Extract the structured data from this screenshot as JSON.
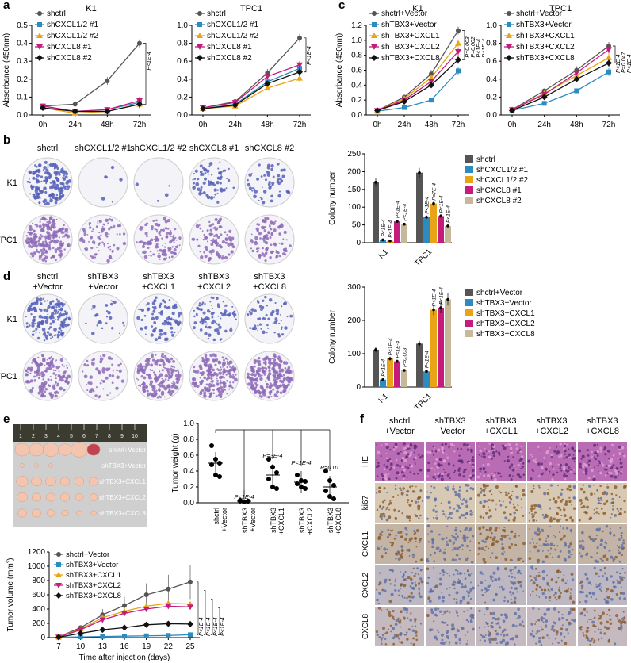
{
  "panel_letters": {
    "a": "a",
    "b": "b",
    "c": "c",
    "d": "d",
    "e": "e",
    "f": "f"
  },
  "colors": {
    "grey": "#555555",
    "blue": "#2E8BC0",
    "orange": "#E8A317",
    "magenta": "#C51B7D",
    "tan": "#C8B89A",
    "black": "#111111",
    "dish_blue": "#5560B8",
    "dish_purple": "#8E6BB8",
    "tumor": "#F3C5AE"
  },
  "panel_a": {
    "ylabel": "Absorbance (450nm)",
    "xticks": [
      "0h",
      "24h",
      "48h",
      "72h"
    ],
    "charts": [
      {
        "title": "K1",
        "yticks": [
          "0.0",
          "0.1",
          "0.2",
          "0.3",
          "0.4",
          "0.5"
        ],
        "ylim": [
          0,
          0.5
        ],
        "pval": "P<1E-4",
        "legend": [
          "shctrl",
          "shCXCL1/2 #1",
          "shCXCL1/2 #2",
          "shCXCL8  #1",
          "shCXCL8  #2"
        ]
      },
      {
        "title": "TPC1",
        "yticks": [
          "0.0",
          "0.2",
          "0.4",
          "0.6",
          "0.8",
          "1.0"
        ],
        "ylim": [
          0,
          1.0
        ],
        "pval": "P<1E-4",
        "legend": [
          "shctrl",
          "shCXCL1/2 #1",
          "shCXCL1/2 #2",
          "shCXCL8  #1",
          "shCXCL8  #2"
        ]
      }
    ]
  },
  "panel_c": {
    "ylabel": "Absorbance (450nm)",
    "xticks": [
      "0h",
      "24h",
      "48h",
      "72h"
    ],
    "charts": [
      {
        "title": "K1",
        "yticks": [
          "0.0",
          "0.2",
          "0.4",
          "0.6",
          "0.8",
          "1.0",
          "1.2"
        ],
        "ylim": [
          0,
          1.2
        ],
        "legend": [
          "shctrl+Vector",
          "shTBX3+Vector",
          "shTBX3+CXCL1",
          "shTBX3+CXCL2",
          "shTBX3+CXCL8"
        ],
        "pvals": [
          "P=0.003",
          "P=0.002",
          "P<1E-4",
          "P<1E-4"
        ]
      },
      {
        "title": "TPC1",
        "yticks": [
          "0.0",
          "0.2",
          "0.4",
          "0.6",
          "0.8",
          "1.0"
        ],
        "ylim": [
          0,
          1.0
        ],
        "legend": [
          "shctrl+Vector",
          "shTBX3+Vector",
          "shTBX3+CXCL1",
          "shTBX3+CXCL2",
          "shTBX3+CXCL8"
        ],
        "pvals": [
          "P<1E-4",
          "P=0.047",
          "P<1E-4",
          "P=8E-4"
        ]
      }
    ]
  },
  "panel_b": {
    "columns": [
      "shctrl",
      "shCXCL1/2 #1",
      "shCXCL1/2 #2",
      "shCXCL8 #1",
      "shCXCL8 #2"
    ],
    "rows": [
      "K1",
      "TPC1"
    ],
    "bar_ylabel": "Colony number",
    "bar_yticks": [
      "0",
      "50",
      "100",
      "150",
      "200",
      "250"
    ],
    "bar_groups": [
      "K1",
      "TPC1"
    ],
    "legend": [
      "shctrl",
      "shCXCL1/2 #1",
      "shCXCL1/2 #2",
      "shCXCL8 #1",
      "shCXCL8 #2"
    ],
    "pvals": [
      "P<1E-4",
      "P<1E-4",
      "P<1E-4",
      "P<1E-4",
      "P<1E-4",
      "P=7E-4",
      "P<1E-4",
      "P<1E-4"
    ]
  },
  "panel_d": {
    "columns": [
      [
        "shctrl",
        "+Vector"
      ],
      [
        "shTBX3",
        "+Vector"
      ],
      [
        "shTBX3",
        "+CXCL1"
      ],
      [
        "shTBX3",
        "+CXCL2"
      ],
      [
        "shTBX3",
        "+CXCL8"
      ]
    ],
    "rows": [
      "K1",
      "TPC1"
    ],
    "bar_ylabel": "Colony number",
    "bar_yticks": [
      "0",
      "100",
      "200",
      "300"
    ],
    "bar_groups": [
      "K1",
      "TPC1"
    ],
    "legend": [
      "shctrl+Vector",
      "shTBX3+Vector",
      "shTBX3+CXCL1",
      "shTBX3+CXCL2",
      "shTBX3+CXCL8"
    ],
    "pvals": [
      "P<1E-4",
      "P<1E-4",
      "P<1E-4",
      "P=0.003",
      "P<1E-4",
      "P<1E-4",
      "P<1E-4"
    ]
  },
  "panel_e": {
    "ruler_marks": [
      "1",
      "2",
      "3",
      "4",
      "5",
      "6",
      "7",
      "8",
      "9",
      "10"
    ],
    "tumor_labels": [
      "shctrl+Vector",
      "shTBX3+Vector",
      "shTBX3+CXCL1",
      "shTBX3+CXCL2",
      "shTBX3+CXCL8"
    ],
    "weight_ylabel": "Tumor weight (g)",
    "weight_yticks": [
      "0.0",
      "0.2",
      "0.4",
      "0.6",
      "0.8",
      "1.0"
    ],
    "weight_groups": [
      [
        "shctrl",
        "+Vector"
      ],
      [
        "shTBX3",
        "+Vector"
      ],
      [
        "shTBX3",
        "+CXCL1"
      ],
      [
        "shTBX3",
        "+CXCL2"
      ],
      [
        "shTBX3",
        "+CXCL8"
      ]
    ],
    "weight_pvals": [
      "P<1E-4",
      "P=3E-4",
      "P<1E-4",
      "P=0.01"
    ],
    "vol_ylabel": "Tumor volume (mm³)",
    "vol_xlabel": "Time after injection (days)",
    "vol_xticks": [
      "7",
      "10",
      "13",
      "16",
      "19",
      "22",
      "25"
    ],
    "vol_yticks": [
      "0",
      "200",
      "400",
      "600",
      "800",
      "1000",
      "1200"
    ],
    "vol_legend": [
      "shctrl+Vector",
      "shTBX3+Vector",
      "shTBX3+CXCL1",
      "shTBX3+CXCL2",
      "shTBX3+CXCL8"
    ],
    "vol_pvals": [
      "P<1E-4",
      "P<1E-4",
      "P<1E-4",
      "P<1E-4"
    ]
  },
  "panel_f": {
    "columns": [
      [
        "shctrl",
        "+Vector"
      ],
      [
        "shTBX3",
        "+Vector"
      ],
      [
        "shTBX3",
        "+CXCL1"
      ],
      [
        "shTBX3",
        "+CXCL2"
      ],
      [
        "shTBX3",
        "+CXCL8"
      ]
    ],
    "rows": [
      "HE",
      "ki67",
      "CXCL1",
      "CXCL2",
      "CXCL8"
    ]
  },
  "chart_data": [
    {
      "type": "line",
      "title": "K1",
      "xlabel": "",
      "ylabel": "Absorbance (450nm)",
      "categories": [
        "0h",
        "24h",
        "48h",
        "72h"
      ],
      "ylim": [
        0,
        0.5
      ],
      "series": [
        {
          "name": "shctrl",
          "values": [
            0.05,
            0.06,
            0.19,
            0.4
          ]
        },
        {
          "name": "shCXCL1/2 #1",
          "values": [
            0.05,
            0.02,
            0.03,
            0.07
          ]
        },
        {
          "name": "shCXCL1/2 #2",
          "values": [
            0.04,
            0.01,
            0.02,
            0.06
          ]
        },
        {
          "name": "shCXCL8  #1",
          "values": [
            0.05,
            0.02,
            0.03,
            0.08
          ]
        },
        {
          "name": "shCXCL8  #2",
          "values": [
            0.04,
            0.02,
            0.02,
            0.06
          ]
        }
      ]
    },
    {
      "type": "line",
      "title": "TPC1",
      "xlabel": "",
      "ylabel": "",
      "categories": [
        "0h",
        "24h",
        "48h",
        "72h"
      ],
      "ylim": [
        0,
        1.0
      ],
      "series": [
        {
          "name": "shctrl",
          "values": [
            0.08,
            0.15,
            0.47,
            0.86
          ]
        },
        {
          "name": "shCXCL1/2 #1",
          "values": [
            0.07,
            0.12,
            0.37,
            0.52
          ]
        },
        {
          "name": "shCXCL1/2 #2",
          "values": [
            0.07,
            0.1,
            0.3,
            0.41
          ]
        },
        {
          "name": "shCXCL8  #1",
          "values": [
            0.08,
            0.14,
            0.43,
            0.56
          ]
        },
        {
          "name": "shCXCL8  #2",
          "values": [
            0.07,
            0.11,
            0.35,
            0.48
          ]
        }
      ]
    },
    {
      "type": "line",
      "title": "K1",
      "xlabel": "",
      "ylabel": "Absorbance (450nm)",
      "categories": [
        "0h",
        "24h",
        "48h",
        "72h"
      ],
      "ylim": [
        0,
        1.2
      ],
      "series": [
        {
          "name": "shctrl+Vector",
          "values": [
            0.06,
            0.24,
            0.55,
            1.13
          ]
        },
        {
          "name": "shTBX3+Vector",
          "values": [
            0.05,
            0.1,
            0.2,
            0.59
          ]
        },
        {
          "name": "shTBX3+CXCL1",
          "values": [
            0.06,
            0.22,
            0.5,
            0.96
          ]
        },
        {
          "name": "shTBX3+CXCL2",
          "values": [
            0.06,
            0.2,
            0.45,
            0.85
          ]
        },
        {
          "name": "shTBX3+CXCL8",
          "values": [
            0.06,
            0.18,
            0.4,
            0.74
          ]
        }
      ]
    },
    {
      "type": "line",
      "title": "TPC1",
      "xlabel": "",
      "ylabel": "",
      "categories": [
        "0h",
        "24h",
        "48h",
        "72h"
      ],
      "ylim": [
        0,
        1.0
      ],
      "series": [
        {
          "name": "shctrl+Vector",
          "values": [
            0.06,
            0.27,
            0.5,
            0.77
          ]
        },
        {
          "name": "shTBX3+Vector",
          "values": [
            0.05,
            0.13,
            0.27,
            0.48
          ]
        },
        {
          "name": "shTBX3+CXCL1",
          "values": [
            0.06,
            0.24,
            0.44,
            0.64
          ]
        },
        {
          "name": "shTBX3+CXCL2",
          "values": [
            0.06,
            0.23,
            0.47,
            0.73
          ]
        },
        {
          "name": "shTBX3+CXCL8",
          "values": [
            0.05,
            0.2,
            0.4,
            0.58
          ]
        }
      ]
    },
    {
      "type": "bar",
      "title": "",
      "xlabel": "",
      "ylabel": "Colony number",
      "categories": [
        "K1",
        "TPC1"
      ],
      "ylim": [
        0,
        250
      ],
      "series": [
        {
          "name": "shctrl",
          "values": [
            170,
            197
          ]
        },
        {
          "name": "shCXCL1/2 #1",
          "values": [
            8,
            72
          ]
        },
        {
          "name": "shCXCL1/2 #2",
          "values": [
            5,
            110
          ]
        },
        {
          "name": "shCXCL8 #1",
          "values": [
            60,
            75
          ]
        },
        {
          "name": "shCXCL8 #2",
          "values": [
            52,
            47
          ]
        }
      ]
    },
    {
      "type": "bar",
      "title": "",
      "xlabel": "",
      "ylabel": "Colony number",
      "categories": [
        "K1",
        "TPC1"
      ],
      "ylim": [
        0,
        300
      ],
      "series": [
        {
          "name": "shctrl+Vector",
          "values": [
            112,
            130
          ]
        },
        {
          "name": "shTBX3+Vector",
          "values": [
            22,
            47
          ]
        },
        {
          "name": "shTBX3+CXCL1",
          "values": [
            85,
            232
          ]
        },
        {
          "name": "shTBX3+CXCL2",
          "values": [
            77,
            238
          ]
        },
        {
          "name": "shTBX3+CXCL8",
          "values": [
            50,
            263
          ]
        }
      ]
    },
    {
      "type": "scatter",
      "title": "",
      "xlabel": "",
      "ylabel": "Tumor weight (g)",
      "categories": [
        "shctrl +Vector",
        "shTBX3 +Vector",
        "shTBX3 +CXCL1",
        "shTBX3 +CXCL2",
        "shTBX3 +CXCL8"
      ],
      "ylim": [
        0,
        1.0
      ],
      "series": [
        {
          "name": "points",
          "values": [
            [
              0.72,
              0.55,
              0.5,
              0.48,
              0.35,
              0.33
            ],
            [
              0.02,
              0.01,
              0.02,
              0.03,
              0.01,
              0.02
            ],
            [
              0.55,
              0.45,
              0.38,
              0.3,
              0.2,
              0.18
            ],
            [
              0.35,
              0.28,
              0.27,
              0.24,
              0.2,
              0.18
            ],
            [
              0.4,
              0.28,
              0.22,
              0.15,
              0.08,
              0.05
            ]
          ]
        },
        {
          "name": "mean",
          "values": [
            0.5,
            0.02,
            0.35,
            0.26,
            0.2
          ]
        }
      ]
    },
    {
      "type": "line",
      "title": "",
      "xlabel": "Time after injection (days)",
      "ylabel": "Tumor volume (mm³)",
      "categories": [
        "7",
        "10",
        "13",
        "16",
        "19",
        "22",
        "25"
      ],
      "ylim": [
        0,
        1200
      ],
      "series": [
        {
          "name": "shctrl+Vector",
          "values": [
            10,
            140,
            320,
            450,
            600,
            680,
            780
          ]
        },
        {
          "name": "shTBX3+Vector",
          "values": [
            5,
            10,
            15,
            20,
            25,
            30,
            40
          ]
        },
        {
          "name": "shTBX3+CXCL1",
          "values": [
            10,
            120,
            280,
            370,
            440,
            480,
            470
          ]
        },
        {
          "name": "shTBX3+CXCL2",
          "values": [
            8,
            110,
            250,
            340,
            400,
            440,
            430
          ]
        },
        {
          "name": "shTBX3+CXCL8",
          "values": [
            6,
            60,
            110,
            140,
            180,
            195,
            190
          ]
        }
      ]
    }
  ]
}
